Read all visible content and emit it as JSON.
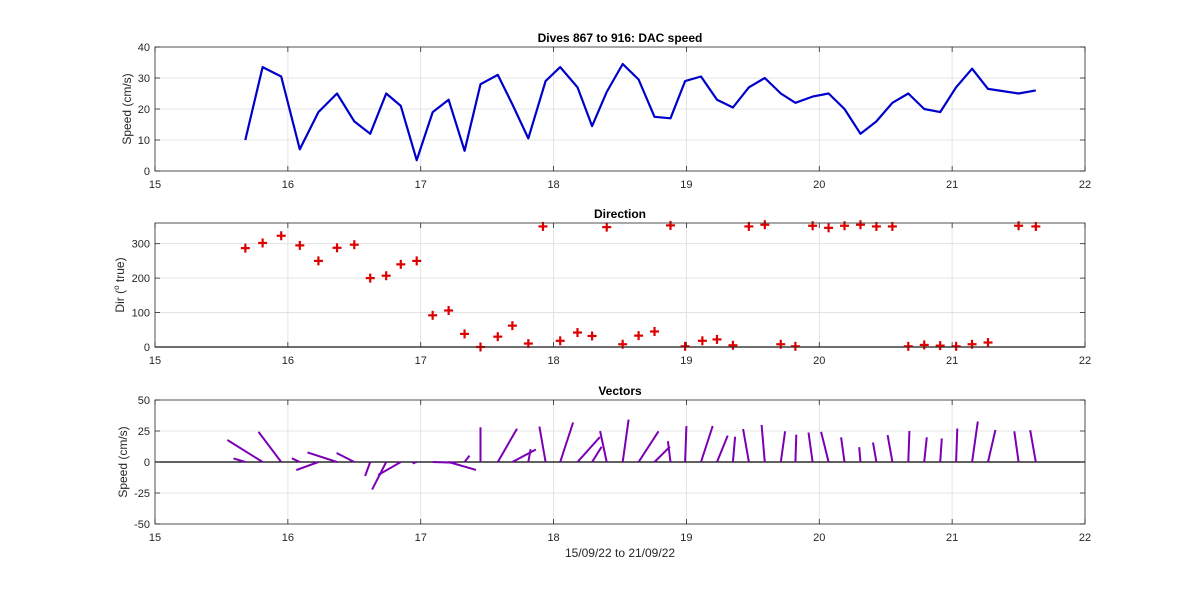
{
  "chart_data": [
    {
      "type": "line",
      "title": "Dives 867 to 916: DAC speed",
      "xlabel": "",
      "ylabel": "Speed (cm/s)",
      "xlim": [
        15,
        22
      ],
      "ylim": [
        0,
        40
      ],
      "xticks": [
        15,
        16,
        17,
        18,
        19,
        20,
        21,
        22
      ],
      "yticks": [
        0,
        10,
        20,
        30,
        40
      ],
      "grid": true,
      "color": "#0000cc",
      "x": [
        15.68,
        15.81,
        15.95,
        16.09,
        16.23,
        16.37,
        16.5,
        16.62,
        16.74,
        16.85,
        16.97,
        17.09,
        17.21,
        17.33,
        17.45,
        17.58,
        17.69,
        17.81,
        17.94,
        18.05,
        18.18,
        18.29,
        18.4,
        18.52,
        18.64,
        18.76,
        18.88,
        18.99,
        19.11,
        19.23,
        19.35,
        19.47,
        19.59,
        19.71,
        19.82,
        19.95,
        20.07,
        20.19,
        20.31,
        20.43,
        20.55,
        20.67,
        20.79,
        20.91,
        21.03,
        21.15,
        21.27,
        21.5,
        21.63
      ],
      "values": [
        10,
        33.5,
        30.5,
        7,
        19,
        25,
        16,
        12,
        25,
        21,
        3.5,
        19,
        23,
        6.5,
        28,
        31,
        21.5,
        10.5,
        29,
        33.5,
        27,
        14.5,
        25.5,
        34.5,
        29.5,
        17.5,
        17,
        29,
        30.5,
        23,
        20.5,
        27,
        30,
        25,
        22,
        24,
        25,
        20,
        12,
        16,
        22,
        25,
        20,
        19,
        27,
        33,
        26.5,
        25,
        26
      ]
    },
    {
      "type": "scatter",
      "title": "Direction",
      "xlabel": "",
      "ylabel": "Dir (°true)",
      "ylabel_parts": [
        "Dir (",
        "o",
        " true)"
      ],
      "xlim": [
        15,
        22
      ],
      "ylim": [
        0,
        360
      ],
      "xticks": [
        15,
        16,
        17,
        18,
        19,
        20,
        21,
        22
      ],
      "yticks": [
        0,
        100,
        200,
        300
      ],
      "grid": true,
      "marker": "+",
      "color": "#dd0000",
      "x": [
        15.68,
        15.81,
        15.95,
        16.09,
        16.23,
        16.37,
        16.5,
        16.62,
        16.74,
        16.85,
        16.97,
        17.09,
        17.21,
        17.33,
        17.45,
        17.58,
        17.69,
        17.81,
        17.92,
        18.05,
        18.18,
        18.29,
        18.4,
        18.52,
        18.64,
        18.76,
        18.88,
        18.99,
        19.12,
        19.23,
        19.35,
        19.47,
        19.59,
        19.71,
        19.82,
        19.95,
        20.07,
        20.19,
        20.31,
        20.43,
        20.55,
        20.67,
        20.79,
        20.91,
        21.03,
        21.15,
        21.27,
        21.5,
        21.63
      ],
      "values": [
        287,
        302,
        323,
        295,
        250,
        288,
        297,
        200,
        207,
        240,
        250,
        92,
        106,
        38,
        0,
        30,
        62,
        10,
        350,
        18,
        42,
        32,
        348,
        8,
        33,
        45,
        353,
        2,
        18,
        22,
        5,
        350,
        355,
        8,
        2,
        352,
        346,
        352,
        355,
        350,
        350,
        2,
        6,
        4,
        2,
        8,
        13,
        352,
        350
      ]
    },
    {
      "type": "vectors",
      "title": "Vectors",
      "xlabel": "15/09/22 to 21/09/22",
      "ylabel": "Speed (cm/s)",
      "xlim": [
        15,
        22
      ],
      "ylim": [
        -50,
        50
      ],
      "xticks": [
        15,
        16,
        17,
        18,
        19,
        20,
        21,
        22
      ],
      "yticks": [
        -50,
        -25,
        0,
        25,
        50
      ],
      "grid": true,
      "color": "#7b00b4",
      "note": "Stick plot: each stick starts at (dive time, 0) and points along the current direction with length proportional to DAC speed; uses the speed and direction series above."
    }
  ]
}
